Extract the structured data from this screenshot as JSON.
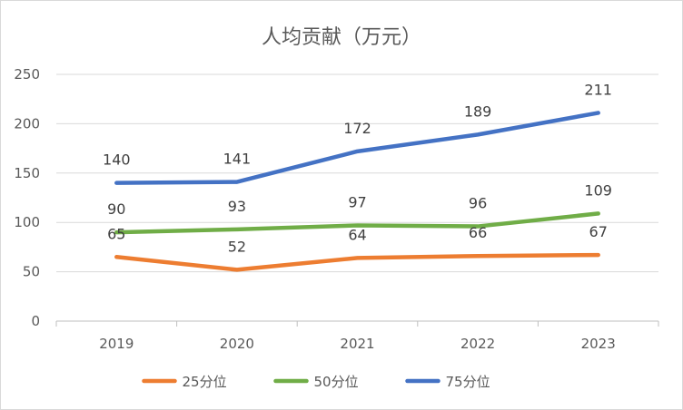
{
  "chart_data": {
    "type": "line",
    "title": "人均贡献（万元）",
    "xlabel": "",
    "ylabel": "",
    "categories": [
      "2019",
      "2020",
      "2021",
      "2022",
      "2023"
    ],
    "ylim": [
      0,
      250
    ],
    "yticks": [
      0,
      50,
      100,
      150,
      200,
      250
    ],
    "grid": true,
    "legend_position": "bottom",
    "series": [
      {
        "name": "25分位",
        "color": "#ed7d31",
        "values": [
          65,
          52,
          64,
          66,
          67
        ]
      },
      {
        "name": "50分位",
        "color": "#70ad47",
        "values": [
          90,
          93,
          97,
          96,
          109
        ]
      },
      {
        "name": "75分位",
        "color": "#4472c4",
        "values": [
          140,
          141,
          172,
          189,
          211
        ]
      }
    ]
  }
}
